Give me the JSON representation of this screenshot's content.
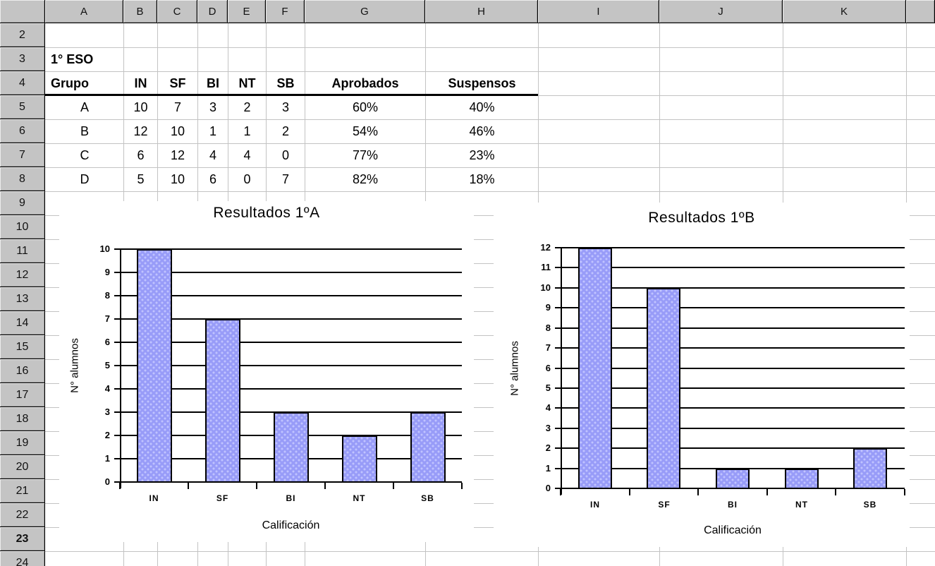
{
  "spreadsheet": {
    "column_headers": [
      "",
      "A",
      "B",
      "C",
      "D",
      "E",
      "F",
      "G",
      "H",
      "I",
      "J",
      "K",
      ""
    ],
    "row_numbers": [
      "2",
      "3",
      "4",
      "5",
      "6",
      "7",
      "8",
      "9",
      "10",
      "11",
      "12",
      "13",
      "14",
      "15",
      "16",
      "17",
      "18",
      "19",
      "20",
      "21",
      "22",
      "23",
      "24"
    ],
    "active_row": "23"
  },
  "table": {
    "title": "1° ESO",
    "headers": [
      "Grupo",
      "IN",
      "SF",
      "BI",
      "NT",
      "SB",
      "Aprobados",
      "Suspensos"
    ],
    "rows": [
      [
        "A",
        "10",
        "7",
        "3",
        "2",
        "3",
        "60%",
        "40%"
      ],
      [
        "B",
        "12",
        "10",
        "1",
        "1",
        "2",
        "54%",
        "46%"
      ],
      [
        "C",
        "6",
        "12",
        "4",
        "4",
        "0",
        "77%",
        "23%"
      ],
      [
        "D",
        "5",
        "10",
        "6",
        "0",
        "7",
        "82%",
        "18%"
      ]
    ]
  },
  "chart_data": [
    {
      "type": "bar",
      "title": "Resultados 1ºA",
      "categories": [
        "IN",
        "SF",
        "BI",
        "NT",
        "SB"
      ],
      "values": [
        10,
        7,
        3,
        2,
        3
      ],
      "xlabel": "Calificación",
      "ylabel": "N° alumnos",
      "ylim": [
        0,
        10
      ],
      "ytick_step": 1,
      "grid": true,
      "legend": "none"
    },
    {
      "type": "bar",
      "title": "Resultados 1ºB",
      "categories": [
        "IN",
        "SF",
        "BI",
        "NT",
        "SB"
      ],
      "values": [
        12,
        10,
        1,
        1,
        2
      ],
      "xlabel": "Calificación",
      "ylabel": "N° alumnos",
      "ylim": [
        0,
        12
      ],
      "ytick_step": 1,
      "grid": true,
      "legend": "none"
    }
  ],
  "colors": {
    "header_bg": "#c4c4c4",
    "gridline": "#c3c3c3",
    "bar_fill": "#989cf8",
    "bar_dot": "#c0c3ff",
    "chart_line": "#000000"
  }
}
